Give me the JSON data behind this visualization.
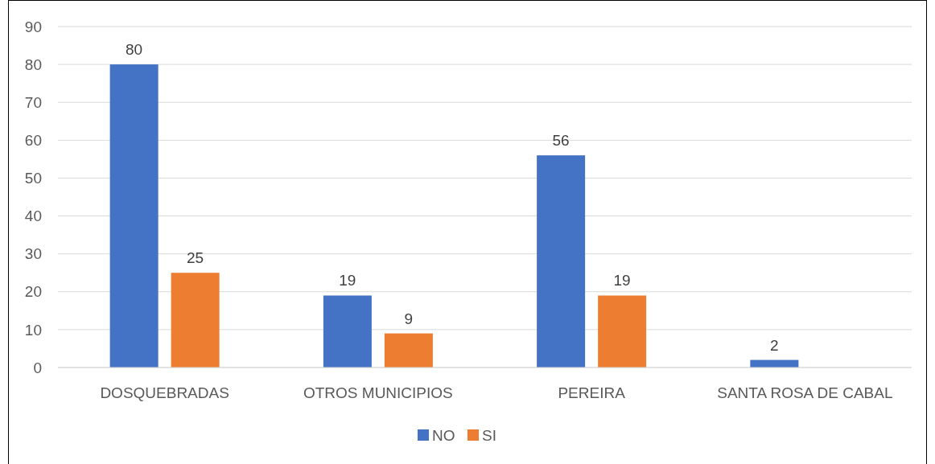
{
  "chart_data": {
    "type": "bar",
    "categories": [
      "DOSQUEBRADAS",
      "OTROS MUNICIPIOS",
      "PEREIRA",
      "SANTA ROSA DE CABAL"
    ],
    "series": [
      {
        "name": "NO",
        "color": "#4472c4",
        "values": [
          80,
          19,
          56,
          2
        ]
      },
      {
        "name": "SI",
        "color": "#ed7d31",
        "values": [
          25,
          9,
          19,
          null
        ]
      }
    ],
    "ylim": [
      0,
      90
    ],
    "yticks": [
      0,
      10,
      20,
      30,
      40,
      50,
      60,
      70,
      80,
      90
    ],
    "grid": "y",
    "legend": "bottom",
    "data_labels": true
  }
}
